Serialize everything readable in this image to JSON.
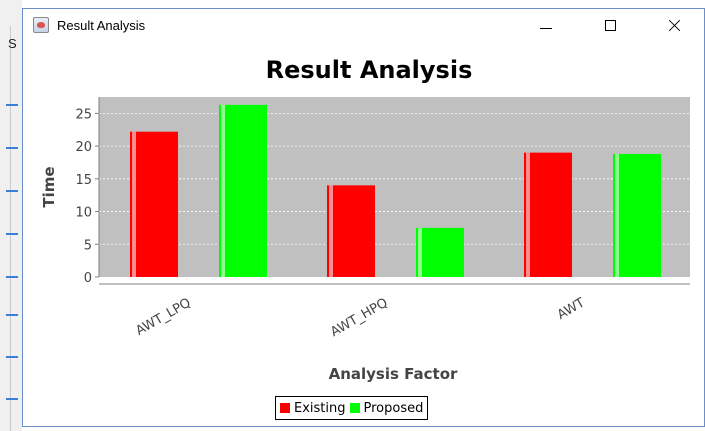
{
  "window": {
    "title": "Result Analysis"
  },
  "background_app": {
    "visible_text": "S"
  },
  "legend": {
    "items": [
      {
        "label": "Existing",
        "color": "#ff0000"
      },
      {
        "label": "Proposed",
        "color": "#00ff00"
      }
    ]
  },
  "chart_data": {
    "type": "bar",
    "title": "Result Analysis",
    "xlabel": "Analysis Factor",
    "ylabel": "Time",
    "categories": [
      "AWT_LPQ",
      "AWT_HPQ",
      "AWT"
    ],
    "series": [
      {
        "name": "Existing",
        "values": [
          22.2,
          14.0,
          19.0
        ],
        "color": "#ff0000"
      },
      {
        "name": "Proposed",
        "values": [
          26.3,
          7.5,
          18.8
        ],
        "color": "#00ff00"
      }
    ],
    "ylim": [
      0,
      27.5
    ],
    "yticks": [
      0,
      5,
      10,
      15,
      20,
      25
    ],
    "grid": true,
    "plot_background": "#c0c0c0",
    "legend_position": "bottom"
  }
}
